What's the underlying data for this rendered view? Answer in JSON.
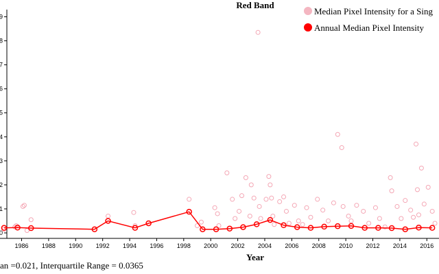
{
  "chart_data": {
    "type": "scatter",
    "title": "Red Band",
    "xlabel": "Year",
    "ylabel": "",
    "xlim": [
      1984.4,
      2016.9
    ],
    "ylim": [
      0,
      0.093
    ],
    "x_ticks": [
      "1986",
      "1988",
      "1990",
      "1992",
      "1994",
      "1996",
      "1998",
      "2000",
      "2002",
      "2004",
      "2006",
      "2008",
      "2010",
      "2012",
      "2014",
      "2016"
    ],
    "y_ticks": [
      "0",
      "1",
      "2",
      "3",
      "4",
      "5",
      "6",
      "7",
      "8",
      "9"
    ],
    "legend_position": "top-right",
    "series": [
      {
        "name": "Median Pixel Intensity for a Sing",
        "kind": "points",
        "color": "#f4a6b4",
        "x": [
          1984.7,
          1985.5,
          1985.6,
          1986.1,
          1986.2,
          1986.4,
          1986.7,
          1992.4,
          1994.3,
          1994.4,
          1998.4,
          1999.0,
          1999.3,
          2000.3,
          2000.5,
          2000.6,
          2001.2,
          2001.6,
          2001.8,
          2002.1,
          2002.3,
          2002.6,
          2002.9,
          2003.0,
          2003.2,
          2003.5,
          2003.6,
          2003.7,
          2004.1,
          2004.3,
          2004.4,
          2004.5,
          2004.6,
          2004.7,
          2005.1,
          2005.4,
          2005.6,
          2005.8,
          2006.2,
          2006.5,
          2006.8,
          2007.1,
          2007.4,
          2007.9,
          2008.3,
          2008.7,
          2009.1,
          2009.4,
          2009.7,
          2009.8,
          2010.2,
          2010.4,
          2010.8,
          2011.3,
          2011.7,
          2012.2,
          2012.5,
          2012.9,
          2013.3,
          2013.4,
          2013.8,
          2014.1,
          2014.4,
          2014.8,
          2015.0,
          2015.2,
          2015.3,
          2015.4,
          2015.6,
          2015.8,
          2016.1,
          2016.4,
          2016.6
        ],
        "y": [
          0.0015,
          0.0025,
          0.003,
          0.011,
          0.0115,
          0.001,
          0.0055,
          0.007,
          0.0085,
          0.003,
          0.014,
          0.003,
          0.0045,
          0.0105,
          0.008,
          0.003,
          0.025,
          0.014,
          0.006,
          0.009,
          0.0155,
          0.023,
          0.007,
          0.02,
          0.0145,
          0.0835,
          0.011,
          0.006,
          0.014,
          0.0235,
          0.02,
          0.0145,
          0.007,
          0.0035,
          0.013,
          0.015,
          0.009,
          0.004,
          0.0115,
          0.005,
          0.0035,
          0.0105,
          0.0065,
          0.014,
          0.0095,
          0.005,
          0.0125,
          0.041,
          0.0355,
          0.011,
          0.007,
          0.005,
          0.0115,
          0.009,
          0.004,
          0.0105,
          0.006,
          0.0025,
          0.023,
          0.0175,
          0.011,
          0.006,
          0.0135,
          0.0095,
          0.0065,
          0.037,
          0.018,
          0.0075,
          0.027,
          0.012,
          0.019,
          0.009,
          0.004
        ]
      },
      {
        "name": "Annual Median Pixel Intensity",
        "kind": "line+points",
        "color": "#ff0000",
        "x": [
          1984.7,
          1985.7,
          1986.7,
          1991.4,
          1992.4,
          1994.4,
          1995.4,
          1998.4,
          1999.4,
          2000.4,
          2001.4,
          2002.4,
          2003.4,
          2004.4,
          2005.4,
          2006.4,
          2007.4,
          2008.4,
          2009.4,
          2010.4,
          2011.4,
          2012.4,
          2013.4,
          2014.4,
          2015.4,
          2016.4
        ],
        "y": [
          0.0021,
          0.0022,
          0.002,
          0.0015,
          0.005,
          0.0021,
          0.004,
          0.0088,
          0.0015,
          0.0015,
          0.0018,
          0.0024,
          0.0036,
          0.0054,
          0.0032,
          0.0024,
          0.0021,
          0.0026,
          0.0028,
          0.0029,
          0.0021,
          0.0021,
          0.002,
          0.0015,
          0.0022,
          0.0021
        ]
      }
    ],
    "footer": "an =0.021, Interquartile Range = 0.0365"
  }
}
